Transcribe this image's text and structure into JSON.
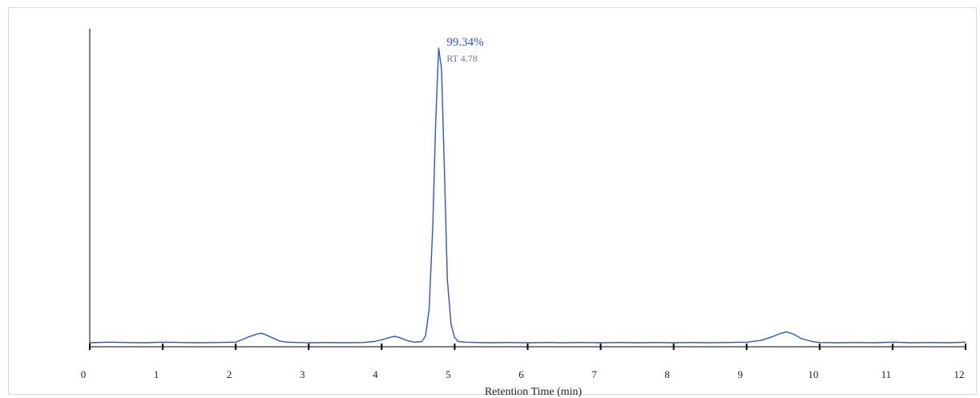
{
  "chart_data": {
    "type": "line",
    "title": "",
    "xlabel": "Retention Time (min)",
    "ylabel": "",
    "xlim": [
      0,
      12
    ],
    "ylim": [
      0,
      1.0
    ],
    "x_ticks": [
      0,
      1,
      2,
      3,
      4,
      5,
      6,
      7,
      8,
      9,
      10,
      11,
      12
    ],
    "grid": false,
    "legend": "none",
    "colors": {
      "trace": "#2f55c9",
      "peak_label": "#2f55c9",
      "rt_label": "#6b7a99",
      "axis": "#000000"
    },
    "series": [
      {
        "x": [
          0.0,
          0.25,
          0.5,
          0.75,
          1.0,
          1.25,
          1.5,
          1.75,
          2.0,
          2.1,
          2.2,
          2.3,
          2.35,
          2.4,
          2.5,
          2.6,
          2.7,
          2.85,
          3.0,
          3.25,
          3.5,
          3.75,
          3.9,
          4.0,
          4.1,
          4.18,
          4.25,
          4.35,
          4.45,
          4.55,
          4.6,
          4.65,
          4.7,
          4.74,
          4.78,
          4.82,
          4.86,
          4.9,
          4.95,
          5.0,
          5.05,
          5.15,
          5.3,
          5.5,
          5.75,
          6.0,
          6.25,
          6.5,
          6.75,
          7.0,
          7.25,
          7.5,
          7.75,
          8.0,
          8.25,
          8.5,
          8.75,
          9.0,
          9.2,
          9.35,
          9.45,
          9.55,
          9.65,
          9.75,
          9.9,
          10.0,
          10.25,
          10.5,
          10.75,
          11.0,
          11.25,
          11.5,
          11.75,
          12.0
        ],
        "y": [
          0.008,
          0.01,
          0.009,
          0.008,
          0.01,
          0.009,
          0.008,
          0.009,
          0.01,
          0.02,
          0.03,
          0.038,
          0.04,
          0.036,
          0.025,
          0.014,
          0.01,
          0.009,
          0.008,
          0.009,
          0.008,
          0.009,
          0.012,
          0.018,
          0.025,
          0.03,
          0.025,
          0.015,
          0.01,
          0.012,
          0.03,
          0.12,
          0.4,
          0.75,
          1.0,
          0.93,
          0.58,
          0.22,
          0.07,
          0.025,
          0.012,
          0.01,
          0.009,
          0.008,
          0.009,
          0.008,
          0.009,
          0.008,
          0.009,
          0.008,
          0.009,
          0.008,
          0.009,
          0.008,
          0.009,
          0.008,
          0.009,
          0.01,
          0.016,
          0.028,
          0.038,
          0.045,
          0.036,
          0.022,
          0.012,
          0.009,
          0.008,
          0.009,
          0.008,
          0.01,
          0.008,
          0.009,
          0.008,
          0.01
        ]
      }
    ],
    "annotations": [
      {
        "x": 4.78,
        "y": 1.0,
        "label": "99.34%",
        "sublabel": "RT 4.78"
      }
    ]
  }
}
